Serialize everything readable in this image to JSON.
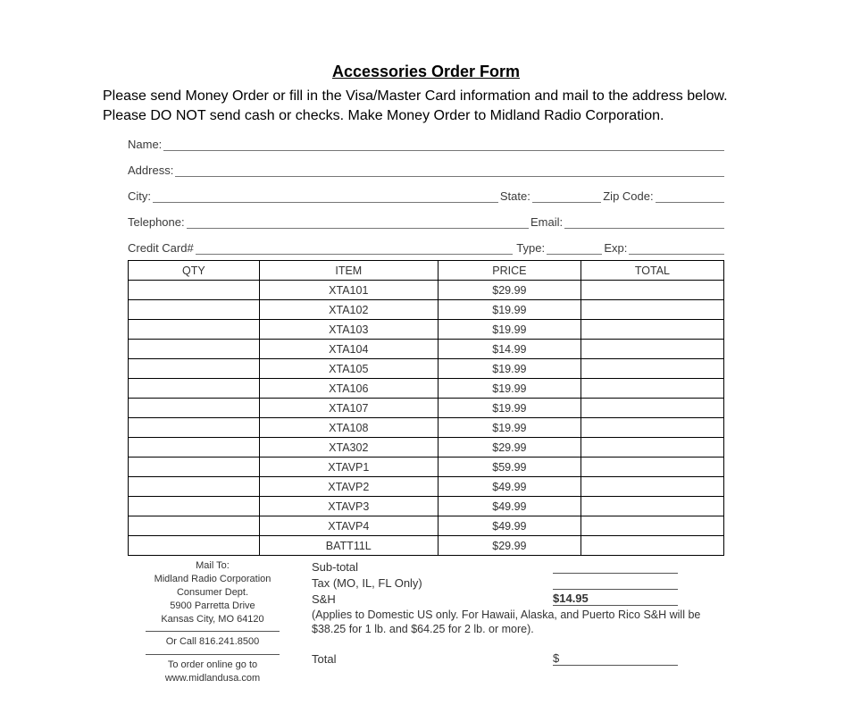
{
  "title": "Accessories Order Form",
  "intro": "Please send Money Order or fill in the Visa/Master Card information and mail to the address below.  Please DO NOT send cash or checks.  Make Money Order to Midland Radio Corporation.",
  "fields": {
    "name": "Name:",
    "address": "Address:",
    "city": "City:",
    "state": "State:",
    "zip": "Zip Code:",
    "telephone": "Telephone:",
    "email": "Email:",
    "cc": "Credit Card#",
    "type": "Type:",
    "exp": "Exp:"
  },
  "table": {
    "headers": [
      "QTY",
      "ITEM",
      "PRICE",
      "TOTAL"
    ],
    "rows": [
      {
        "item": "XTA101",
        "price": "$29.99"
      },
      {
        "item": "XTA102",
        "price": "$19.99"
      },
      {
        "item": "XTA103",
        "price": "$19.99"
      },
      {
        "item": "XTA104",
        "price": "$14.99"
      },
      {
        "item": "XTA105",
        "price": "$19.99"
      },
      {
        "item": "XTA106",
        "price": "$19.99"
      },
      {
        "item": "XTA107",
        "price": "$19.99"
      },
      {
        "item": "XTA108",
        "price": "$19.99"
      },
      {
        "item": "XTA302",
        "price": "$29.99"
      },
      {
        "item": "XTAVP1",
        "price": "$59.99"
      },
      {
        "item": "XTAVP2",
        "price": "$49.99"
      },
      {
        "item": "XTAVP3",
        "price": "$49.99"
      },
      {
        "item": "XTAVP4",
        "price": "$49.99"
      },
      {
        "item": "BATT11L",
        "price": "$29.99"
      }
    ]
  },
  "mail": {
    "heading": "Mail To:",
    "line1": "Midland Radio Corporation",
    "line2": "Consumer Dept.",
    "line3": "5900 Parretta Drive",
    "line4": "Kansas City, MO 64120",
    "call": "Or Call 816.241.8500",
    "online1": "To order online go to",
    "online2": "www.midlandusa.com"
  },
  "summary": {
    "subtotal": "Sub-total",
    "tax": "Tax (MO, IL, FL Only)",
    "sh": "S&H",
    "sh_val": "$14.95",
    "note": "(Applies to Domestic US only.  For Hawaii, Alaska, and Puerto Rico S&H will be $38.25 for 1 lb. and $64.25 for 2 lb. or more).",
    "total": "Total",
    "total_prefix": "$"
  }
}
